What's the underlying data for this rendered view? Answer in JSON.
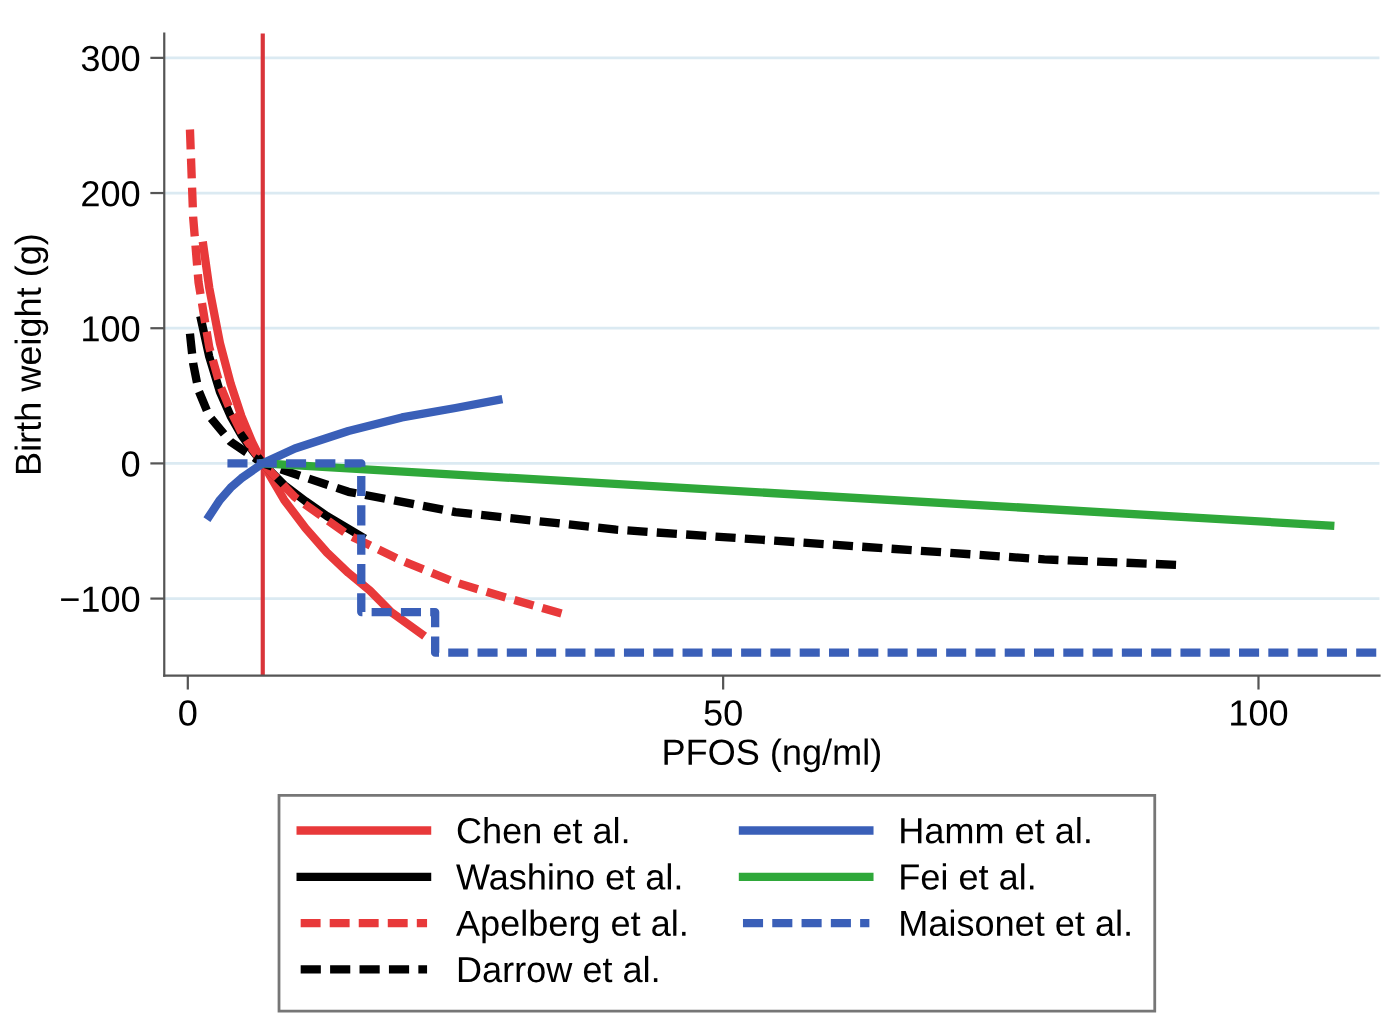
{
  "chart_data": {
    "type": "line",
    "xlabel": "PFOS (ng/ml)",
    "ylabel": "Birth weight (g)",
    "xlim": [
      -2.2,
      111.3
    ],
    "ylim": [
      -157,
      318
    ],
    "xticks": [
      0,
      50,
      100
    ],
    "yticks": [
      {
        "value": -100,
        "label": "−100"
      },
      0,
      100,
      200,
      300
    ],
    "grid": "y",
    "legend": "bottom",
    "marker": "none",
    "ref_lines": [
      {
        "axis": "x",
        "value": 7,
        "color": "#d9343a"
      }
    ],
    "series": [
      {
        "name": "Chen et al.",
        "color": "#e8393a",
        "line_style": "solid",
        "x": [
          1.45,
          2,
          3,
          4,
          5,
          6,
          7,
          9,
          11,
          13,
          15,
          17,
          19,
          21.8
        ],
        "values": [
          161,
          130,
          89,
          59,
          35,
          16,
          0,
          -27,
          -48,
          -66,
          -81,
          -94,
          -110,
          -126
        ]
      },
      {
        "name": "Washino et al.",
        "color": "#000000",
        "line_style": "solid",
        "x": [
          1.25,
          2,
          3,
          4,
          5,
          6,
          7,
          9,
          11,
          13,
          16.2
        ],
        "values": [
          106,
          79,
          53,
          35,
          21,
          10,
          0,
          -16,
          -28,
          -39,
          -54
        ]
      },
      {
        "name": "Apelberg et al.",
        "color": "#e8393a",
        "line_style": "dashed",
        "x": [
          0.2,
          0.5,
          1,
          2,
          3,
          4,
          5,
          6,
          7,
          10,
          15,
          20,
          25,
          30,
          34.9
        ],
        "values": [
          247,
          182,
          134,
          86,
          58,
          39,
          23,
          11,
          0,
          -25,
          -53,
          -72,
          -88,
          -100,
          -111
        ]
      },
      {
        "name": "Darrow et al.",
        "color": "#000000",
        "line_style": "dashed",
        "x": [
          0.2,
          0.5,
          1,
          2,
          4,
          7,
          15,
          25,
          40,
          60,
          80,
          92.3
        ],
        "values": [
          96,
          74,
          54,
          35,
          16,
          0,
          -21,
          -36,
          -49,
          -60,
          -71,
          -75
        ]
      },
      {
        "name": "Hamm et al.",
        "color": "#3a5fb8",
        "line_style": "solid",
        "x": [
          2,
          3,
          4,
          5,
          7,
          10,
          15,
          20,
          25,
          29
        ],
        "values": [
          -39,
          -27,
          -18,
          -11,
          0,
          11,
          24,
          34,
          41,
          47
        ]
      },
      {
        "name": "Fei et al.",
        "color": "#2fa83a",
        "line_style": "solid",
        "x": [
          7,
          106.7
        ],
        "values": [
          0,
          -46
        ]
      },
      {
        "name": "Maisonet et al.",
        "color": "#3a5fb8",
        "line_style": "dashed",
        "type": "step",
        "x": [
          3.7,
          16.2,
          23.1,
          111
        ],
        "values": [
          0,
          -110,
          -140,
          -140
        ]
      }
    ]
  }
}
